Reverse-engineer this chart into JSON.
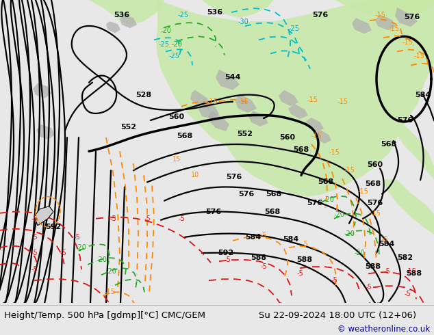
{
  "title_left": "Height/Temp. 500 hPa [gdmp][°C] CMC/GEM",
  "title_right": "Su 22-09-2024 18:00 UTC (12+06)",
  "copyright": "© weatheronline.co.uk",
  "bg_color": "#e8e8e8",
  "map_bg": "#e0e0e0",
  "caption_bg": "#e8e8e8",
  "text_color": "#000000",
  "copyright_color": "#000099",
  "title_fontsize": 9.5,
  "copyright_fontsize": 8.5,
  "fig_width": 6.34,
  "fig_height": 4.9,
  "dpi": 100,
  "green_fill": "#c8e8a8",
  "grey_land": "#b0b0b0",
  "black_contour_lw": 1.6,
  "thick_contour_lw": 2.5,
  "dashed_lw": 1.3
}
